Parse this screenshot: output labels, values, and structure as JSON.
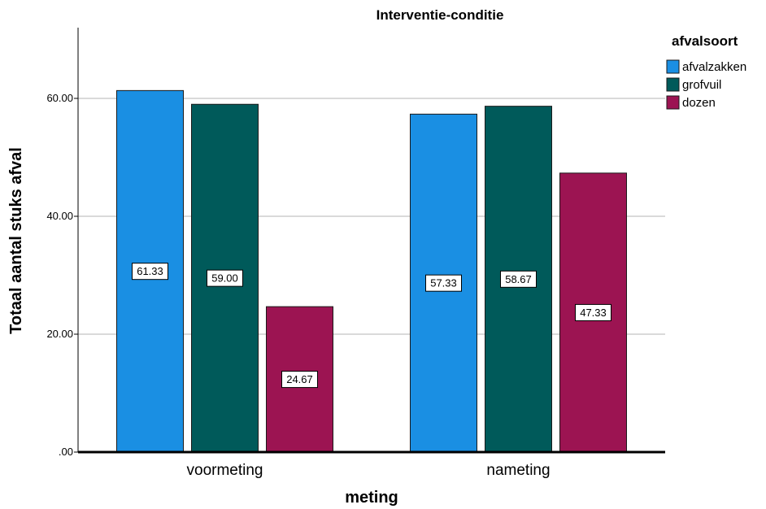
{
  "chart_data": {
    "type": "bar",
    "title": "Interventie-conditie",
    "xlabel": "meting",
    "ylabel": "Totaal aantal stuks afval",
    "categories": [
      "voormeting",
      "nameting"
    ],
    "series": [
      {
        "name": "afvalzakken",
        "values": [
          61.33,
          57.33
        ],
        "color": "#1a8fe3"
      },
      {
        "name": "grofvuil",
        "values": [
          59.0,
          58.67
        ],
        "color": "#005a5a"
      },
      {
        "name": "dozen",
        "values": [
          24.67,
          47.33
        ],
        "color": "#9c1452"
      }
    ],
    "ylim": [
      0,
      72
    ],
    "yticks": [
      0,
      20,
      40,
      60
    ],
    "ytick_labels": [
      ".00",
      "20.00",
      "40.00",
      "60.00"
    ],
    "grid": true,
    "legend_title": "afvalsoort",
    "legend_position": "top-right"
  }
}
